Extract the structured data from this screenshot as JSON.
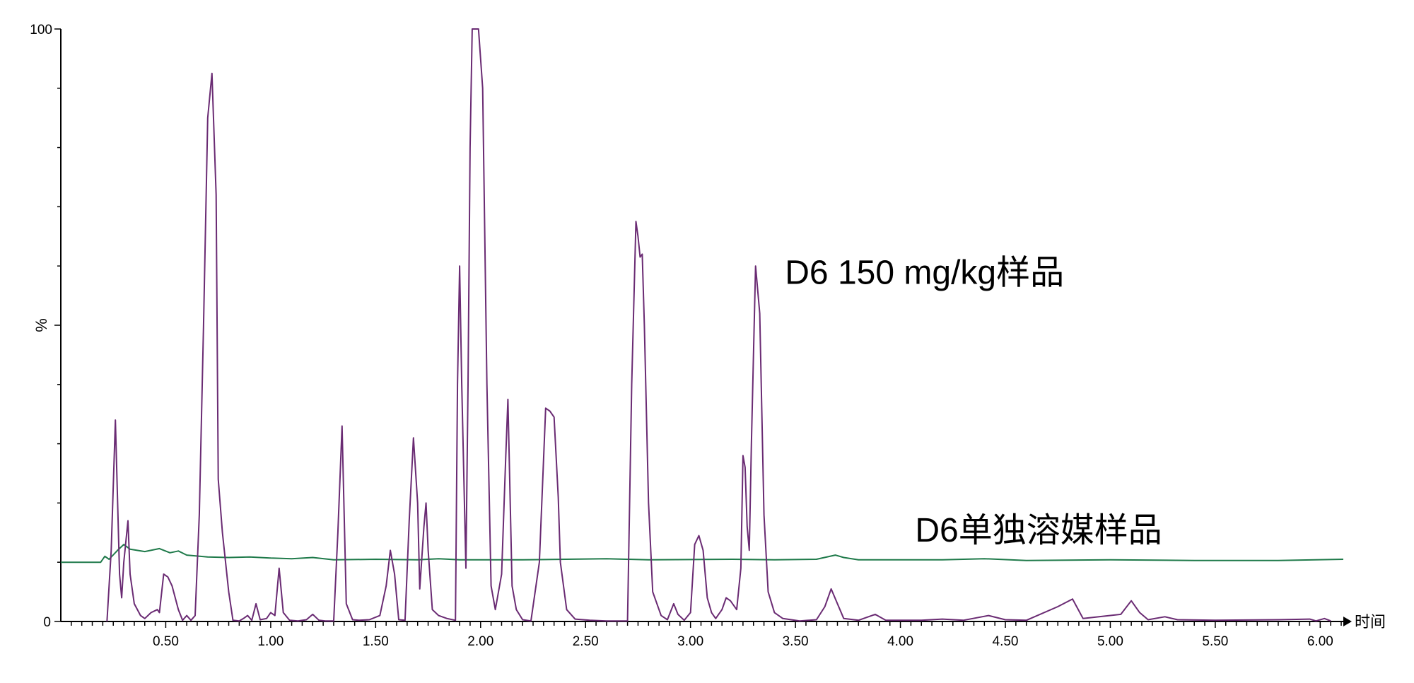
{
  "chart_data": {
    "type": "line",
    "title": "",
    "xlabel": "时间",
    "ylabel": "%",
    "xlim": [
      0.0,
      6.11
    ],
    "ylim": [
      0,
      100
    ],
    "x_major_ticks": [
      0.5,
      1.0,
      1.5,
      2.0,
      2.5,
      3.0,
      3.5,
      4.0,
      4.5,
      5.0,
      5.5,
      6.0
    ],
    "x_tick_labels": [
      "0.50",
      "1.00",
      "1.50",
      "2.00",
      "2.50",
      "3.00",
      "3.50",
      "4.00",
      "4.50",
      "5.00",
      "5.50",
      "6.00"
    ],
    "x_minor_tick_step": 0.05,
    "y_tick_labels": [
      "0",
      "%",
      "100"
    ],
    "y_minor_tick_step": 10,
    "grid": false,
    "legend": "none",
    "annotations": [
      {
        "text": "D6 150 mg/kg样品",
        "x": 3.45,
        "y": 57
      },
      {
        "text": "D6单独溶媒样品",
        "x": 4.07,
        "y": 13.5
      }
    ],
    "series": [
      {
        "name": "D6 150 mg/kg样品",
        "color": "#6a2b73",
        "points": [
          [
            0.22,
            0
          ],
          [
            0.24,
            12
          ],
          [
            0.26,
            34
          ],
          [
            0.28,
            8
          ],
          [
            0.29,
            4
          ],
          [
            0.3,
            10
          ],
          [
            0.32,
            17
          ],
          [
            0.33,
            8
          ],
          [
            0.35,
            3
          ],
          [
            0.38,
            1
          ],
          [
            0.4,
            0.5
          ],
          [
            0.43,
            1.5
          ],
          [
            0.46,
            2
          ],
          [
            0.47,
            1.5
          ],
          [
            0.49,
            8
          ],
          [
            0.51,
            7.5
          ],
          [
            0.53,
            6
          ],
          [
            0.56,
            2
          ],
          [
            0.58,
            0.2
          ],
          [
            0.6,
            1
          ],
          [
            0.62,
            0.2
          ],
          [
            0.64,
            1
          ],
          [
            0.66,
            18
          ],
          [
            0.68,
            50
          ],
          [
            0.7,
            85
          ],
          [
            0.72,
            92.5
          ],
          [
            0.74,
            72
          ],
          [
            0.75,
            24
          ],
          [
            0.77,
            15
          ],
          [
            0.8,
            5
          ],
          [
            0.82,
            0.2
          ],
          [
            0.85,
            0.1
          ],
          [
            0.87,
            0.5
          ],
          [
            0.89,
            1
          ],
          [
            0.91,
            0.2
          ],
          [
            0.93,
            3
          ],
          [
            0.95,
            0.3
          ],
          [
            0.98,
            0.5
          ],
          [
            1.0,
            1.5
          ],
          [
            1.02,
            1
          ],
          [
            1.04,
            9
          ],
          [
            1.06,
            1.5
          ],
          [
            1.09,
            0.2
          ],
          [
            1.13,
            0.1
          ],
          [
            1.17,
            0.3
          ],
          [
            1.2,
            1.2
          ],
          [
            1.23,
            0.2
          ],
          [
            1.26,
            0.1
          ],
          [
            1.3,
            0.1
          ],
          [
            1.32,
            15
          ],
          [
            1.34,
            33
          ],
          [
            1.36,
            3
          ],
          [
            1.39,
            0.3
          ],
          [
            1.42,
            0.2
          ],
          [
            1.47,
            0.3
          ],
          [
            1.52,
            1
          ],
          [
            1.55,
            6
          ],
          [
            1.57,
            12
          ],
          [
            1.59,
            8
          ],
          [
            1.61,
            0.3
          ],
          [
            1.64,
            0.2
          ],
          [
            1.66,
            17
          ],
          [
            1.68,
            31
          ],
          [
            1.7,
            20
          ],
          [
            1.71,
            5.5
          ],
          [
            1.73,
            16
          ],
          [
            1.74,
            20
          ],
          [
            1.75,
            12
          ],
          [
            1.77,
            2
          ],
          [
            1.8,
            1
          ],
          [
            1.84,
            0.5
          ],
          [
            1.88,
            0.2
          ],
          [
            1.89,
            40
          ],
          [
            1.9,
            60
          ],
          [
            1.91,
            40
          ],
          [
            1.93,
            9
          ],
          [
            1.94,
            40
          ],
          [
            1.95,
            80
          ],
          [
            1.96,
            100
          ],
          [
            1.99,
            100
          ],
          [
            2.01,
            90
          ],
          [
            2.03,
            40
          ],
          [
            2.05,
            6
          ],
          [
            2.07,
            2
          ],
          [
            2.1,
            8
          ],
          [
            2.12,
            28
          ],
          [
            2.13,
            37.5
          ],
          [
            2.15,
            6
          ],
          [
            2.17,
            2
          ],
          [
            2.2,
            0.3
          ],
          [
            2.24,
            0.1
          ],
          [
            2.28,
            10
          ],
          [
            2.31,
            36
          ],
          [
            2.33,
            35.5
          ],
          [
            2.35,
            34.5
          ],
          [
            2.37,
            21
          ],
          [
            2.38,
            10
          ],
          [
            2.41,
            2
          ],
          [
            2.45,
            0.4
          ],
          [
            2.52,
            0.2
          ],
          [
            2.6,
            0.1
          ],
          [
            2.7,
            0.1
          ],
          [
            2.72,
            40
          ],
          [
            2.74,
            67.5
          ],
          [
            2.75,
            65
          ],
          [
            2.76,
            61.5
          ],
          [
            2.77,
            62
          ],
          [
            2.78,
            50
          ],
          [
            2.8,
            20
          ],
          [
            2.82,
            5
          ],
          [
            2.86,
            1
          ],
          [
            2.89,
            0.3
          ],
          [
            2.92,
            3
          ],
          [
            2.94,
            1.2
          ],
          [
            2.97,
            0.2
          ],
          [
            3.0,
            1.5
          ],
          [
            3.02,
            13
          ],
          [
            3.04,
            14.5
          ],
          [
            3.06,
            12
          ],
          [
            3.08,
            4
          ],
          [
            3.1,
            1.5
          ],
          [
            3.12,
            0.5
          ],
          [
            3.15,
            2
          ],
          [
            3.17,
            4
          ],
          [
            3.19,
            3.5
          ],
          [
            3.22,
            2
          ],
          [
            3.24,
            9
          ],
          [
            3.25,
            28
          ],
          [
            3.26,
            26
          ],
          [
            3.27,
            16
          ],
          [
            3.28,
            12
          ],
          [
            3.29,
            30
          ],
          [
            3.31,
            60
          ],
          [
            3.33,
            52
          ],
          [
            3.35,
            18
          ],
          [
            3.37,
            5
          ],
          [
            3.4,
            1.5
          ],
          [
            3.44,
            0.5
          ],
          [
            3.52,
            0.1
          ],
          [
            3.6,
            0.3
          ],
          [
            3.64,
            2.5
          ],
          [
            3.67,
            5.5
          ],
          [
            3.7,
            3
          ],
          [
            3.73,
            0.5
          ],
          [
            3.8,
            0.2
          ],
          [
            3.88,
            1.2
          ],
          [
            3.93,
            0.2
          ],
          [
            4.1,
            0.2
          ],
          [
            4.2,
            0.4
          ],
          [
            4.3,
            0.2
          ],
          [
            4.42,
            1
          ],
          [
            4.5,
            0.3
          ],
          [
            4.6,
            0.2
          ],
          [
            4.75,
            2.5
          ],
          [
            4.82,
            3.8
          ],
          [
            4.87,
            0.5
          ],
          [
            5.05,
            1.2
          ],
          [
            5.1,
            3.5
          ],
          [
            5.14,
            1.5
          ],
          [
            5.18,
            0.3
          ],
          [
            5.26,
            0.8
          ],
          [
            5.32,
            0.3
          ],
          [
            5.5,
            0.2
          ],
          [
            5.8,
            0.3
          ],
          [
            5.95,
            0.4
          ],
          [
            5.98,
            0.1
          ],
          [
            6.02,
            0.5
          ],
          [
            6.05,
            0.1
          ]
        ]
      },
      {
        "name": "D6单独溶媒样品",
        "color": "#1f7a4a",
        "points": [
          [
            0.0,
            10
          ],
          [
            0.19,
            10
          ],
          [
            0.21,
            11
          ],
          [
            0.23,
            10.5
          ],
          [
            0.27,
            12
          ],
          [
            0.3,
            13
          ],
          [
            0.33,
            12.2
          ],
          [
            0.4,
            11.8
          ],
          [
            0.47,
            12.3
          ],
          [
            0.52,
            11.6
          ],
          [
            0.56,
            11.9
          ],
          [
            0.6,
            11.2
          ],
          [
            0.7,
            10.9
          ],
          [
            0.8,
            10.8
          ],
          [
            0.9,
            10.9
          ],
          [
            1.0,
            10.7
          ],
          [
            1.1,
            10.6
          ],
          [
            1.2,
            10.8
          ],
          [
            1.3,
            10.4
          ],
          [
            1.5,
            10.5
          ],
          [
            1.7,
            10.4
          ],
          [
            1.8,
            10.6
          ],
          [
            1.9,
            10.4
          ],
          [
            2.2,
            10.4
          ],
          [
            2.6,
            10.6
          ],
          [
            2.8,
            10.4
          ],
          [
            3.2,
            10.5
          ],
          [
            3.4,
            10.4
          ],
          [
            3.6,
            10.5
          ],
          [
            3.69,
            11.2
          ],
          [
            3.73,
            10.8
          ],
          [
            3.8,
            10.4
          ],
          [
            4.2,
            10.4
          ],
          [
            4.4,
            10.6
          ],
          [
            4.6,
            10.3
          ],
          [
            5.0,
            10.4
          ],
          [
            5.4,
            10.3
          ],
          [
            5.8,
            10.3
          ],
          [
            6.11,
            10.5
          ]
        ]
      }
    ]
  }
}
